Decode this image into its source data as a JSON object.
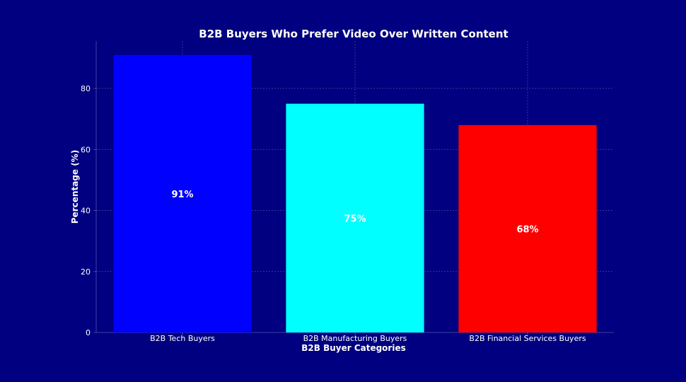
{
  "chart_data": {
    "type": "bar",
    "title": "B2B Buyers Who Prefer Video Over Written Content",
    "xlabel": "B2B Buyer Categories",
    "ylabel": "Percentage (%)",
    "categories": [
      "B2B Tech Buyers",
      "B2B Manufacturing Buyers",
      "B2B Financial Services Buyers"
    ],
    "values": [
      91,
      75,
      68
    ],
    "data_labels": [
      "91%",
      "75%",
      "68%"
    ],
    "colors": [
      "#0000ff",
      "#00ffff",
      "#ff0000"
    ],
    "ylim": [
      0,
      95.55
    ],
    "yticks": [
      0,
      20,
      40,
      60,
      80
    ],
    "grid": true,
    "background": "#000080"
  }
}
